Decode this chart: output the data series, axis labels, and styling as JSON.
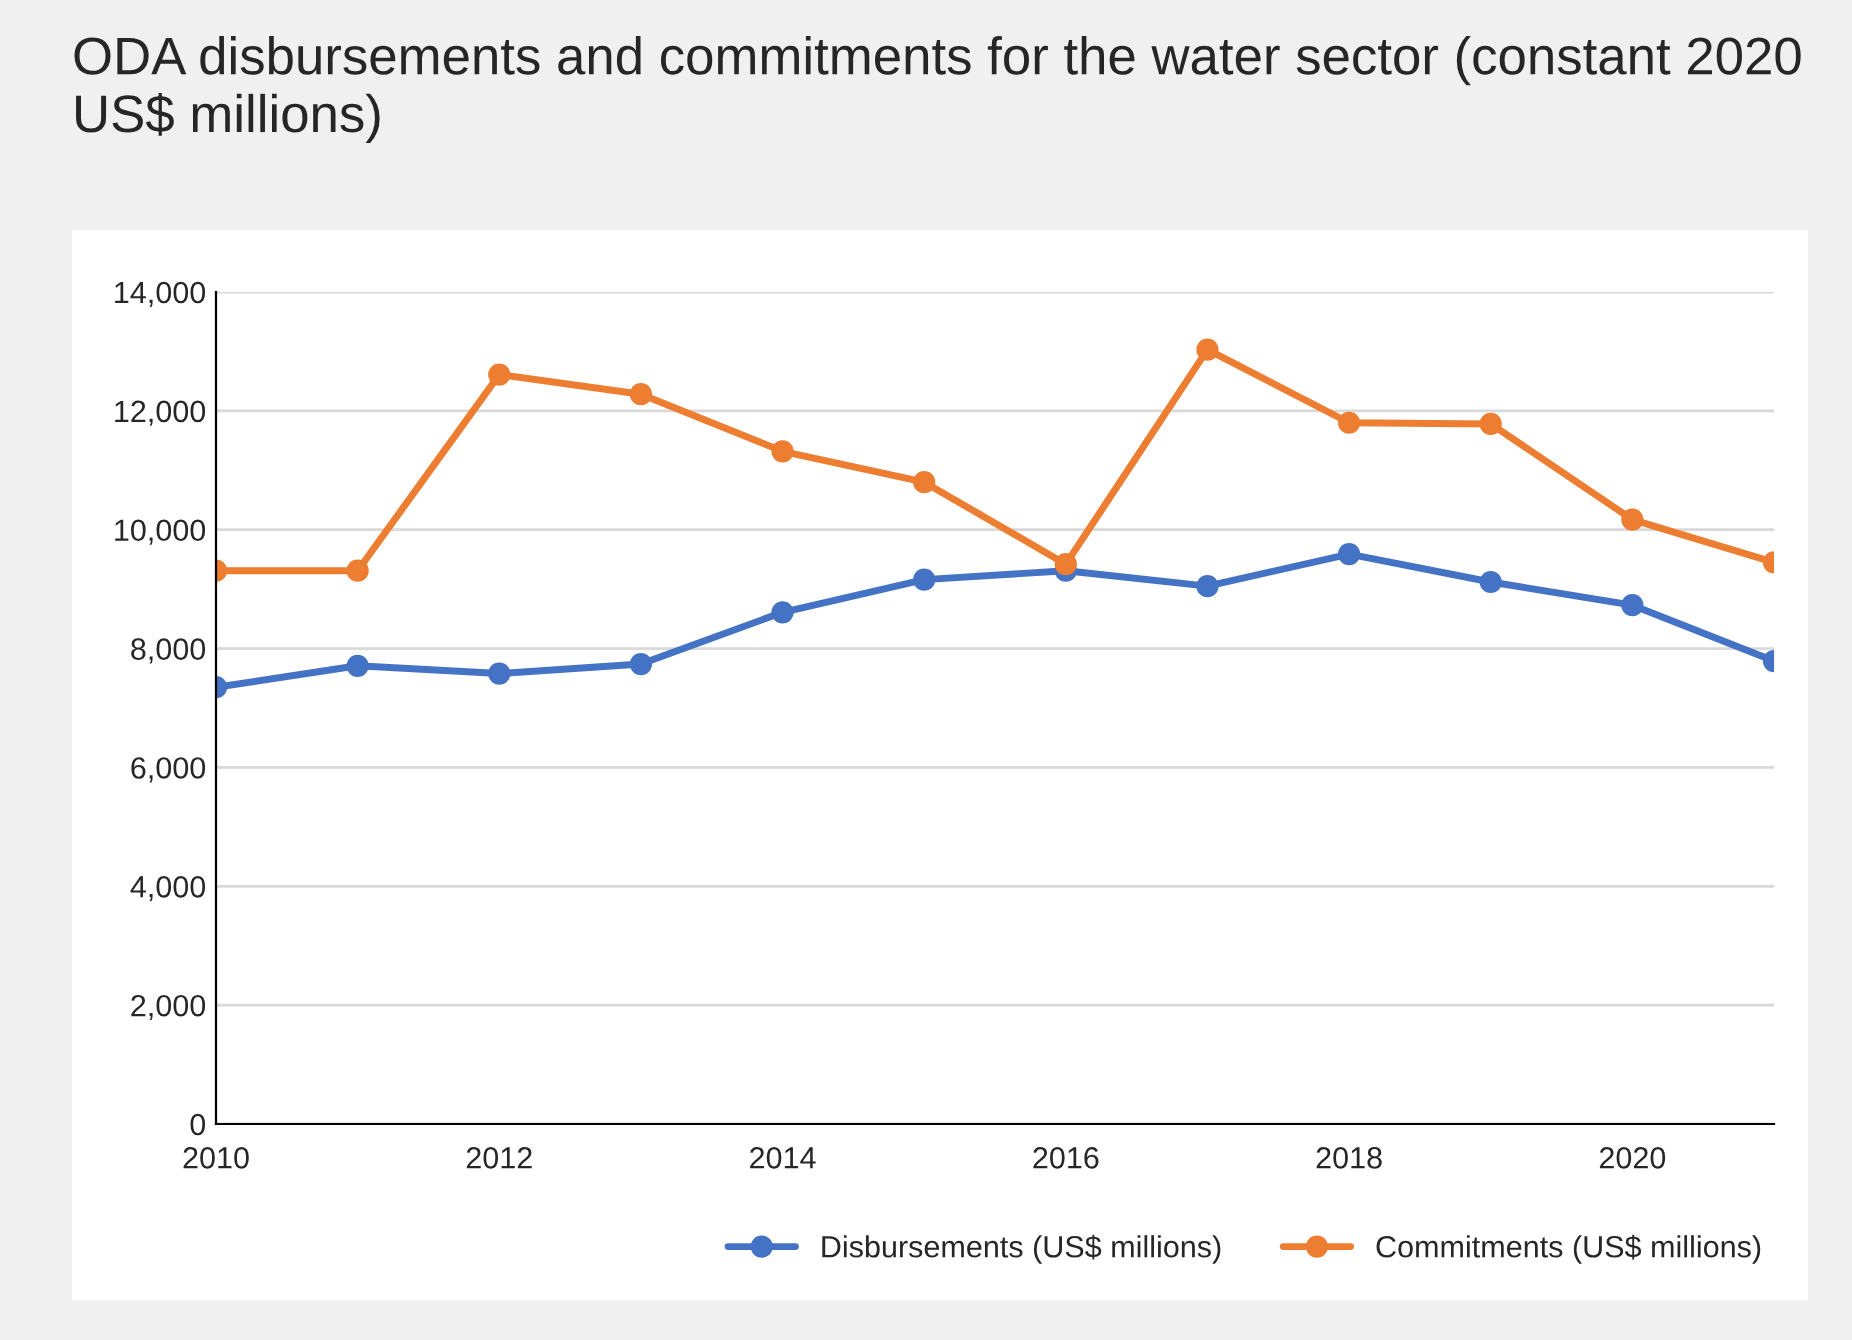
{
  "chart_data": {
    "type": "line",
    "title": "ODA disbursements and commitments for the water sector (constant 2020 US$ millions)",
    "x": [
      2010,
      2011,
      2012,
      2013,
      2014,
      2015,
      2016,
      2017,
      2018,
      2019,
      2020,
      2021
    ],
    "series": [
      {
        "name": "Disbursements (US$ millions)",
        "color": "#4472c4",
        "values": [
          7350,
          7710,
          7580,
          7740,
          8610,
          9160,
          9310,
          9050,
          9590,
          9120,
          8730,
          7790
        ]
      },
      {
        "name": "Commitments (US$ millions)",
        "color": "#ed7d31",
        "values": [
          9310,
          9310,
          12610,
          12280,
          11320,
          10800,
          9420,
          13030,
          11800,
          11780,
          10170,
          9450
        ]
      }
    ],
    "xlim": [
      2010,
      2021
    ],
    "xticks": [
      2010,
      2012,
      2014,
      2016,
      2018,
      2020
    ],
    "ylim": [
      0,
      14000
    ],
    "yticks": [
      {
        "value": 0,
        "label": "0"
      },
      {
        "value": 2000,
        "label": "2,000"
      },
      {
        "value": 4000,
        "label": "4,000"
      },
      {
        "value": 6000,
        "label": "6,000"
      },
      {
        "value": 8000,
        "label": "8,000"
      },
      {
        "value": 10000,
        "label": "10,000"
      },
      {
        "value": 12000,
        "label": "12,000"
      },
      {
        "value": 14000,
        "label": "14,000"
      }
    ],
    "grid": "y",
    "legend": "bottom",
    "marker": "circle",
    "line_style": "solid"
  }
}
